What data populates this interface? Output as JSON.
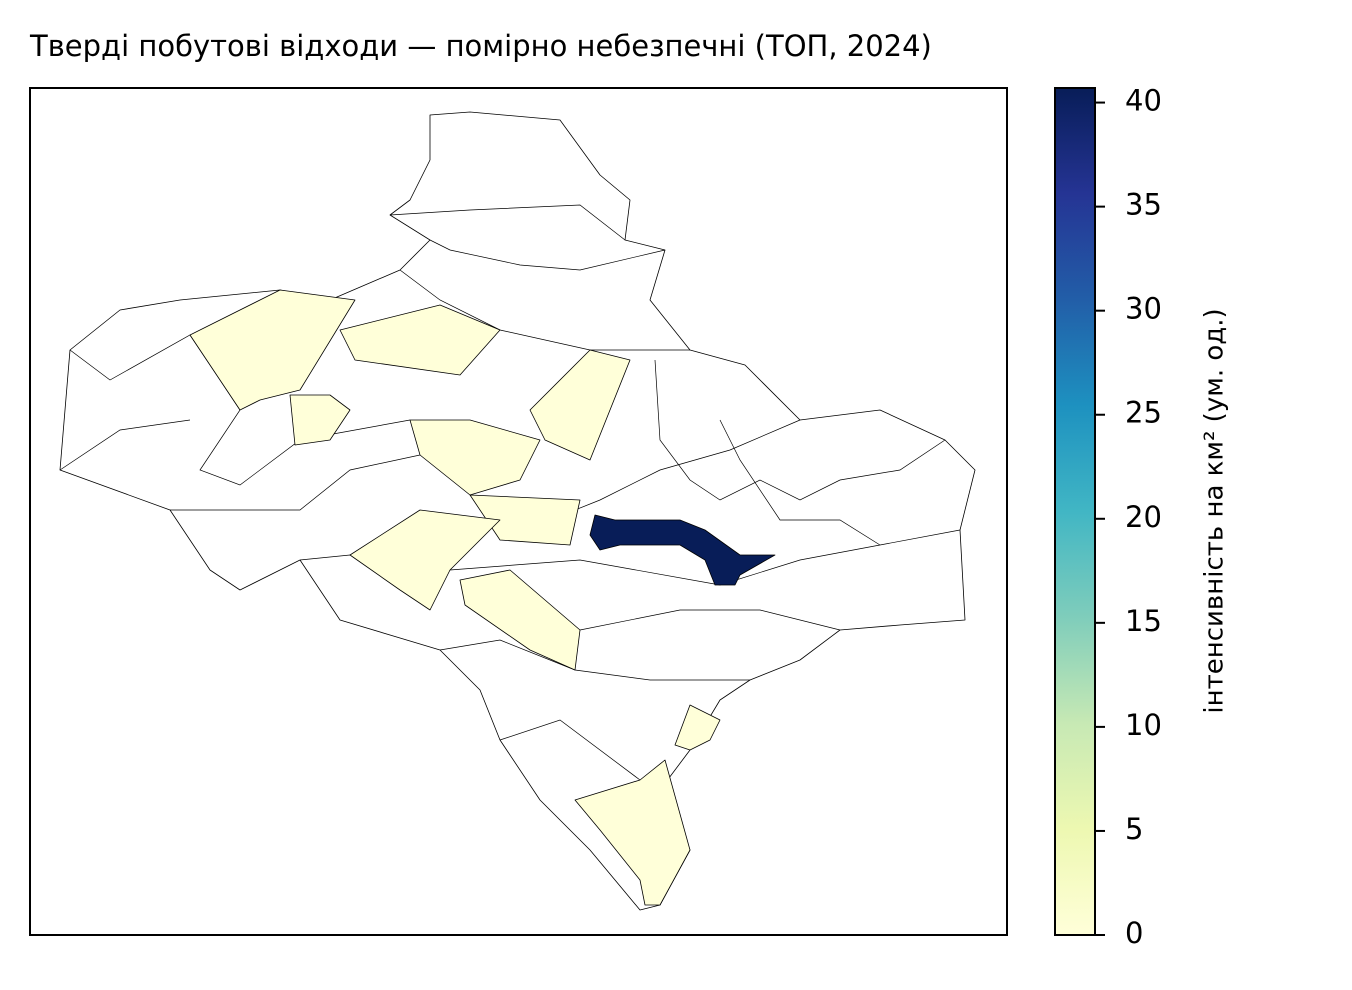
{
  "chart_data": {
    "type": "choropleth",
    "title": "Тверді побутові відходи — помірно небезпечні (ТОП, 2024)",
    "colorbar_label": "інтенсивність на км² (ум. од.)",
    "colorbar_lim": [
      0,
      40.7
    ],
    "colorbar_ticks": [
      0,
      5,
      10,
      15,
      20,
      25,
      30,
      35,
      40
    ],
    "colormap": [
      "#ffffd9",
      "#edf8b1",
      "#c7e9b4",
      "#7fcdbb",
      "#41b6c4",
      "#1d91c0",
      "#225ea8",
      "#253494",
      "#081d58"
    ]
  }
}
